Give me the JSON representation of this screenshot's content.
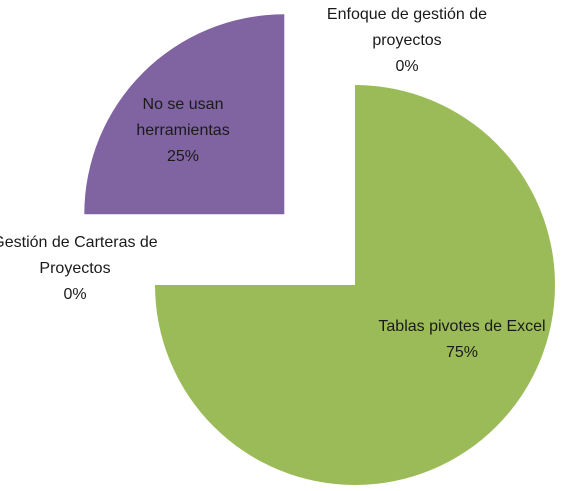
{
  "chart_data": {
    "type": "pie",
    "categories": [
      "Enfoque de gestión de proyectos",
      "Tablas pivotes de Excel",
      "Gestión de Carteras de Proyectos",
      "No se usan herramientas"
    ],
    "values": [
      0,
      75,
      0,
      25
    ],
    "value_labels": [
      "0%",
      "75%",
      "0%",
      "25%"
    ],
    "colors": [
      "#4f81bd",
      "#9bbb59",
      "#c0504d",
      "#8064a2"
    ]
  }
}
